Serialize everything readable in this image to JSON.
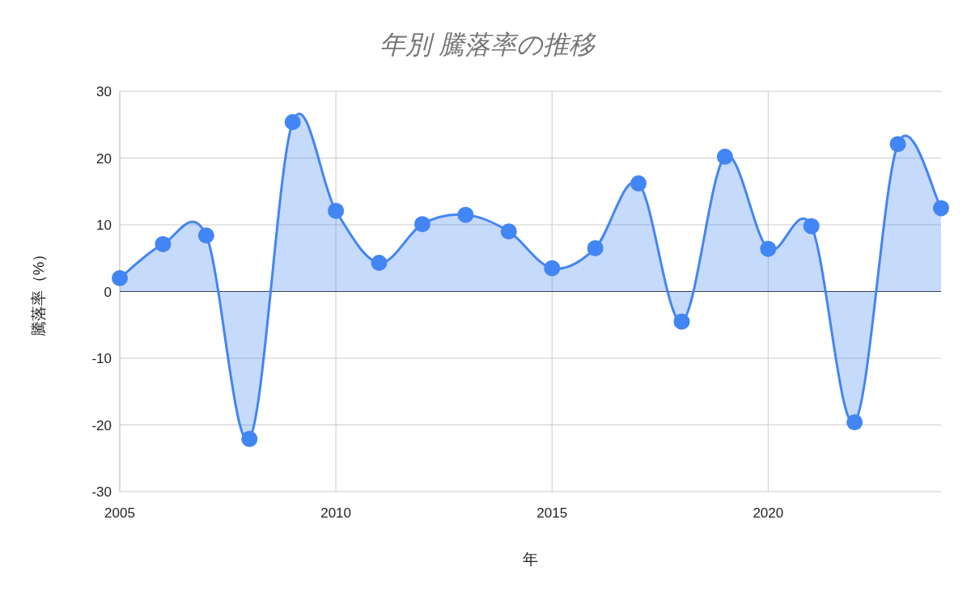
{
  "chart_data": {
    "type": "area",
    "title": "年別 騰落率の推移",
    "xlabel": "年",
    "ylabel": "騰落率（%）",
    "x": [
      2005,
      2006,
      2007,
      2008,
      2009,
      2010,
      2011,
      2012,
      2013,
      2014,
      2015,
      2016,
      2017,
      2018,
      2019,
      2020,
      2021,
      2022,
      2023,
      2024
    ],
    "series": [
      {
        "color": "#4285f4",
        "values": [
          2.0,
          7.1,
          8.4,
          -22.1,
          25.4,
          12.1,
          4.3,
          10.1,
          11.5,
          9.0,
          3.5,
          6.5,
          16.2,
          -4.5,
          20.2,
          6.4,
          9.8,
          -19.6,
          22.1,
          12.5
        ]
      }
    ],
    "xlim": [
      2005,
      2024
    ],
    "xticks": [
      2005,
      2010,
      2015,
      2020
    ],
    "ylim": [
      -30,
      30
    ],
    "yticks": [
      -30,
      -20,
      -10,
      0,
      10,
      20,
      30
    ],
    "grid": true,
    "marker": "circle"
  }
}
